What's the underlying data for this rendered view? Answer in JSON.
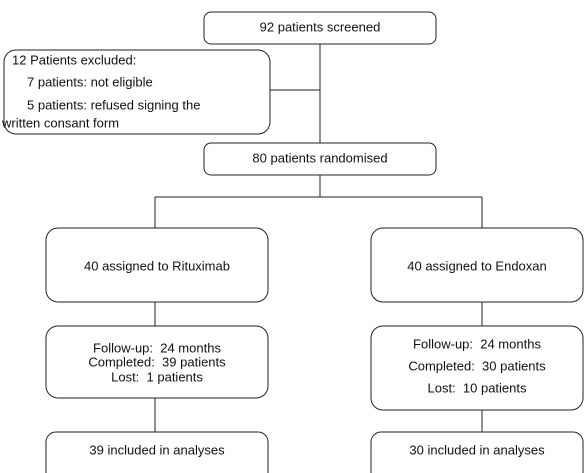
{
  "screened": "92 patients screened",
  "excluded": {
    "title": "12 Patients excluded:",
    "lines": [
      "7 patients: not eligible",
      "5 patients: refused signing the",
      "written consant form"
    ]
  },
  "randomised": "80 patients randomised",
  "arms": [
    {
      "assigned": "40 assigned to Rituximab",
      "followup": [
        "Follow-up:  24 months",
        "Completed:  39 patients",
        "Lost:  1 patients"
      ],
      "analysed": "39 included in analyses"
    },
    {
      "assigned": "40 assigned to Endoxan",
      "followup": [
        "Follow-up:  24 months",
        "Completed:  30 patients",
        "Lost:  10 patients"
      ],
      "analysed": "30 included in analyses"
    }
  ]
}
